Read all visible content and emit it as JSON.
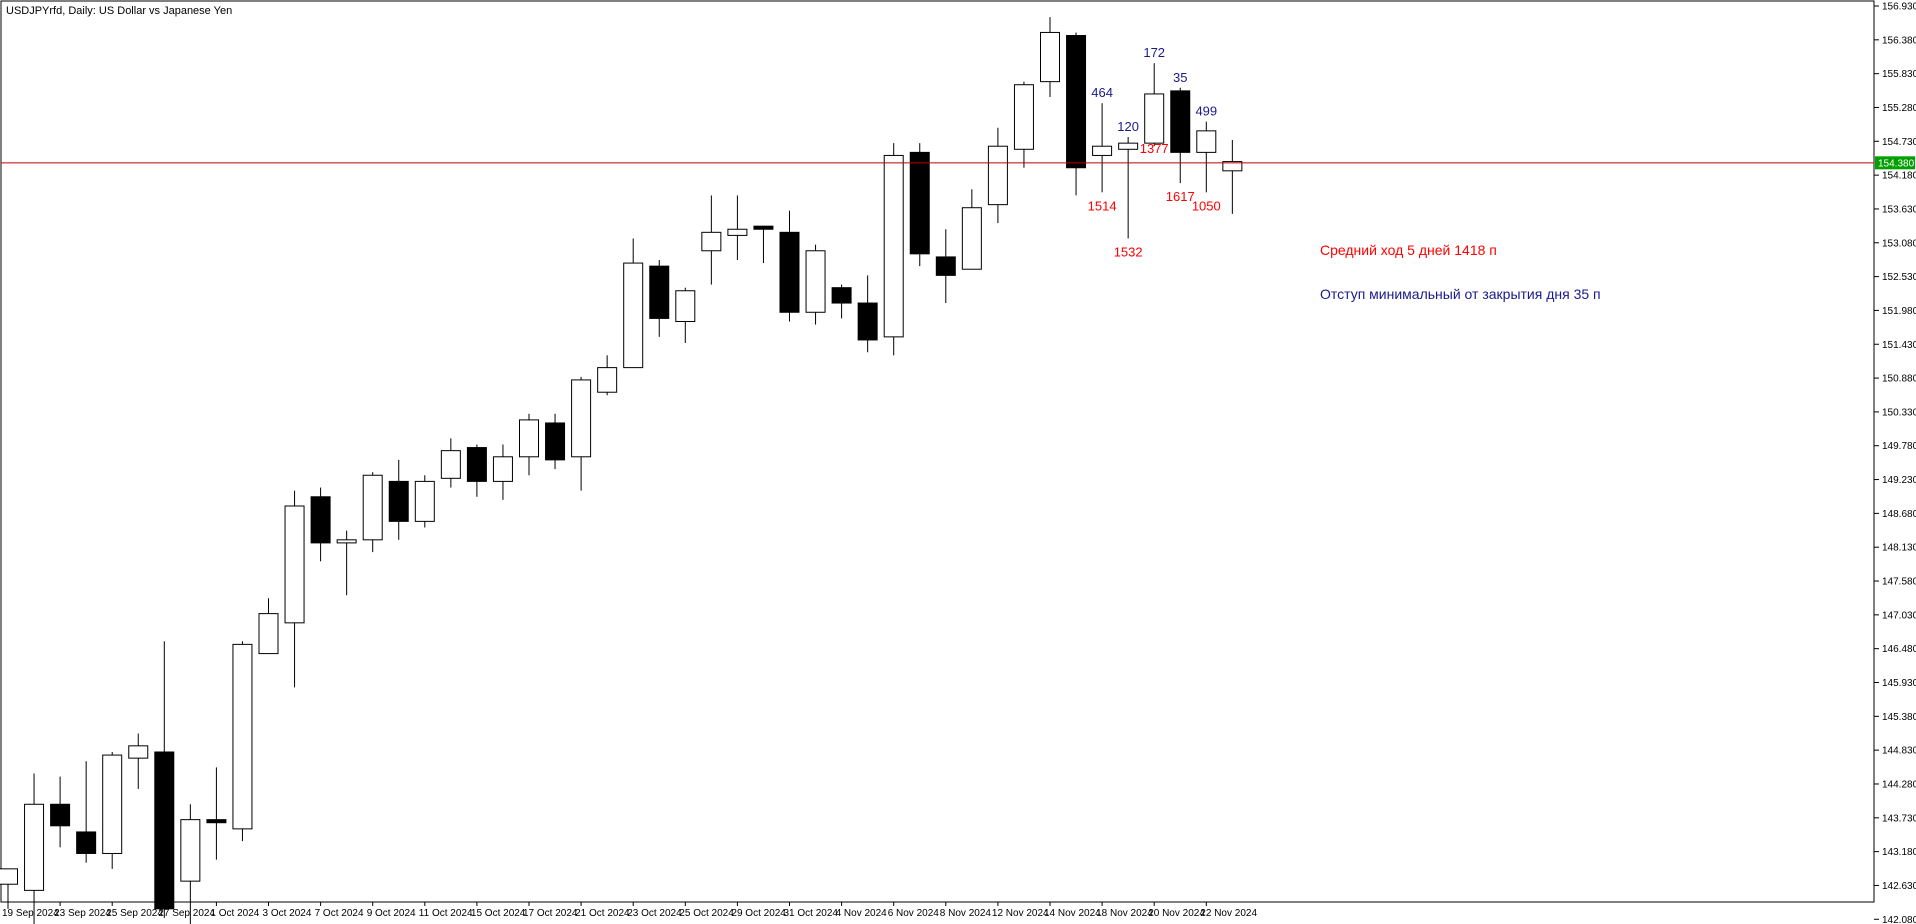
{
  "header": {
    "title": "USDJPYrfd, Daily:  US Dollar vs Japanese Yen"
  },
  "price_tag": {
    "label": "154.380"
  },
  "info": {
    "avg_range": "Средний ход 5 дней 1418 п",
    "min_pullback": "Отступ минимальный от закрытия дня 35 п"
  },
  "colors": {
    "background": "#ffffff",
    "frame": "#000000",
    "candle_up": "#ffffff",
    "candle_down": "#000000",
    "level_line": "#c00000",
    "price_tag": "#00a000",
    "label_red": "#ff0000",
    "label_blue": "#1a1a8c"
  },
  "chart_data": {
    "type": "candlestick",
    "title": "USDJPYrfd, Daily:  US Dollar vs Japanese Yen",
    "ylim": [
      141.65,
      156.95
    ],
    "y_ticks": [
      "156.930",
      "156.380",
      "155.830",
      "155.280",
      "154.730",
      "154.180",
      "153.630",
      "153.080",
      "152.530",
      "151.980",
      "151.430",
      "150.880",
      "150.330",
      "149.780",
      "149.230",
      "148.680",
      "148.130",
      "147.580",
      "147.030",
      "146.480",
      "145.930",
      "145.380",
      "144.830",
      "144.280",
      "143.730",
      "143.180",
      "142.630",
      "142.080"
    ],
    "x_ticks": [
      {
        "i": 0,
        "label": "19 Sep 2024"
      },
      {
        "i": 2,
        "label": "23 Sep 2024"
      },
      {
        "i": 4,
        "label": "25 Sep 2024"
      },
      {
        "i": 6,
        "label": "27 Sep 2024"
      },
      {
        "i": 8,
        "label": "1 Oct 2024"
      },
      {
        "i": 10,
        "label": "3 Oct 2024"
      },
      {
        "i": 12,
        "label": "7 Oct 2024"
      },
      {
        "i": 14,
        "label": "9 Oct 2024"
      },
      {
        "i": 16,
        "label": "11 Oct 2024"
      },
      {
        "i": 18,
        "label": "15 Oct 2024"
      },
      {
        "i": 20,
        "label": "17 Oct 2024"
      },
      {
        "i": 22,
        "label": "21 Oct 2024"
      },
      {
        "i": 24,
        "label": "23 Oct 2024"
      },
      {
        "i": 26,
        "label": "25 Oct 2024"
      },
      {
        "i": 28,
        "label": "29 Oct 2024"
      },
      {
        "i": 30,
        "label": "31 Oct 2024"
      },
      {
        "i": 32,
        "label": "4 Nov 2024"
      },
      {
        "i": 34,
        "label": "6 Nov 2024"
      },
      {
        "i": 36,
        "label": "8 Nov 2024"
      },
      {
        "i": 38,
        "label": "12 Nov 2024"
      },
      {
        "i": 40,
        "label": "14 Nov 2024"
      },
      {
        "i": 42,
        "label": "18 Nov 2024"
      },
      {
        "i": 44,
        "label": "20 Nov 2024"
      },
      {
        "i": 46,
        "label": "22 Nov 2024"
      }
    ],
    "candles": [
      {
        "o": 142.65,
        "h": 142.9,
        "l": 142.25,
        "c": 142.9
      },
      {
        "o": 142.55,
        "h": 144.45,
        "l": 141.75,
        "c": 143.95
      },
      {
        "o": 143.95,
        "h": 144.4,
        "l": 143.25,
        "c": 143.6
      },
      {
        "o": 143.5,
        "h": 144.65,
        "l": 143.0,
        "c": 143.15
      },
      {
        "o": 143.15,
        "h": 144.8,
        "l": 142.9,
        "c": 144.75
      },
      {
        "o": 144.7,
        "h": 145.1,
        "l": 144.2,
        "c": 144.9
      },
      {
        "o": 144.8,
        "h": 146.6,
        "l": 142.1,
        "c": 142.25
      },
      {
        "o": 142.7,
        "h": 143.95,
        "l": 141.75,
        "c": 143.7
      },
      {
        "o": 143.7,
        "h": 144.55,
        "l": 143.05,
        "c": 143.65
      },
      {
        "o": 143.55,
        "h": 146.6,
        "l": 143.35,
        "c": 146.55
      },
      {
        "o": 146.4,
        "h": 147.3,
        "l": 146.4,
        "c": 147.05
      },
      {
        "o": 146.9,
        "h": 149.05,
        "l": 145.85,
        "c": 148.8
      },
      {
        "o": 148.95,
        "h": 149.1,
        "l": 147.9,
        "c": 148.2
      },
      {
        "o": 148.2,
        "h": 148.4,
        "l": 147.35,
        "c": 148.25
      },
      {
        "o": 148.25,
        "h": 149.35,
        "l": 148.05,
        "c": 149.3
      },
      {
        "o": 149.2,
        "h": 149.55,
        "l": 148.25,
        "c": 148.55
      },
      {
        "o": 148.55,
        "h": 149.3,
        "l": 148.45,
        "c": 149.2
      },
      {
        "o": 149.25,
        "h": 149.9,
        "l": 149.1,
        "c": 149.7
      },
      {
        "o": 149.75,
        "h": 149.8,
        "l": 148.95,
        "c": 149.2
      },
      {
        "o": 149.2,
        "h": 149.8,
        "l": 148.9,
        "c": 149.6
      },
      {
        "o": 149.6,
        "h": 150.3,
        "l": 149.3,
        "c": 150.2
      },
      {
        "o": 150.15,
        "h": 150.3,
        "l": 149.4,
        "c": 149.55
      },
      {
        "o": 149.6,
        "h": 150.9,
        "l": 149.05,
        "c": 150.85
      },
      {
        "o": 150.65,
        "h": 151.25,
        "l": 150.6,
        "c": 151.05
      },
      {
        "o": 151.05,
        "h": 153.15,
        "l": 151.05,
        "c": 152.75
      },
      {
        "o": 152.7,
        "h": 152.8,
        "l": 151.55,
        "c": 151.85
      },
      {
        "o": 151.8,
        "h": 152.35,
        "l": 151.45,
        "c": 152.3
      },
      {
        "o": 152.95,
        "h": 153.85,
        "l": 152.4,
        "c": 153.25
      },
      {
        "o": 153.2,
        "h": 153.85,
        "l": 152.8,
        "c": 153.3
      },
      {
        "o": 153.35,
        "h": 153.35,
        "l": 152.75,
        "c": 153.3
      },
      {
        "o": 153.25,
        "h": 153.6,
        "l": 151.8,
        "c": 151.95
      },
      {
        "o": 151.95,
        "h": 153.05,
        "l": 151.75,
        "c": 152.95
      },
      {
        "o": 152.35,
        "h": 152.4,
        "l": 151.85,
        "c": 152.1
      },
      {
        "o": 152.1,
        "h": 152.55,
        "l": 151.3,
        "c": 151.5
      },
      {
        "o": 151.55,
        "h": 154.7,
        "l": 151.25,
        "c": 154.5
      },
      {
        "o": 154.55,
        "h": 154.7,
        "l": 152.7,
        "c": 152.9
      },
      {
        "o": 152.85,
        "h": 153.3,
        "l": 152.1,
        "c": 152.55
      },
      {
        "o": 152.65,
        "h": 153.95,
        "l": 152.65,
        "c": 153.65
      },
      {
        "o": 153.7,
        "h": 154.95,
        "l": 153.4,
        "c": 154.65
      },
      {
        "o": 154.6,
        "h": 155.7,
        "l": 154.3,
        "c": 155.65
      },
      {
        "o": 155.7,
        "h": 156.75,
        "l": 155.45,
        "c": 156.5
      },
      {
        "o": 156.45,
        "h": 156.5,
        "l": 153.85,
        "c": 154.3
      },
      {
        "o": 154.5,
        "h": 155.35,
        "l": 153.9,
        "c": 154.65
      },
      {
        "o": 154.6,
        "h": 154.8,
        "l": 153.15,
        "c": 154.7
      },
      {
        "o": 154.7,
        "h": 156.0,
        "l": 154.65,
        "c": 155.5
      },
      {
        "o": 155.55,
        "h": 155.6,
        "l": 154.05,
        "c": 154.55
      },
      {
        "o": 154.55,
        "h": 155.05,
        "l": 153.9,
        "c": 154.9
      },
      {
        "o": 154.25,
        "h": 154.75,
        "l": 153.55,
        "c": 154.4
      }
    ],
    "level_line": 154.38,
    "annotations": [
      {
        "i": 42,
        "text": "464",
        "color": "blue",
        "at": "high"
      },
      {
        "i": 42,
        "text": "1514",
        "color": "red",
        "at": "low"
      },
      {
        "i": 43,
        "text": "120",
        "color": "blue",
        "at": "high"
      },
      {
        "i": 43,
        "text": "1532",
        "color": "red",
        "at": "low"
      },
      {
        "i": 44,
        "text": "172",
        "color": "blue",
        "at": "high"
      },
      {
        "i": 44,
        "text": "1377",
        "color": "red",
        "at": "below-open"
      },
      {
        "i": 45,
        "text": "35",
        "color": "blue",
        "at": "high"
      },
      {
        "i": 45,
        "text": "1617",
        "color": "red",
        "at": "low"
      },
      {
        "i": 46,
        "text": "499",
        "color": "blue",
        "at": "high"
      },
      {
        "i": 46,
        "text": "1050",
        "color": "red",
        "at": "low"
      }
    ]
  }
}
